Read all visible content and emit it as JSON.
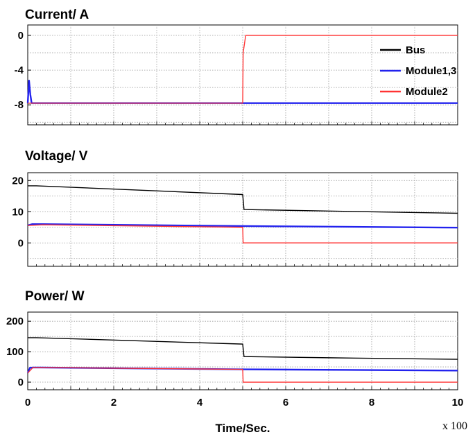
{
  "chart_data": [
    {
      "type": "line",
      "title": "Current/ A",
      "x_range": [
        0,
        10
      ],
      "ylim": [
        -10.3,
        1.2
      ],
      "yticks": [
        0,
        -4,
        -8
      ],
      "grid": true,
      "legend_position": "top-right",
      "series": [
        {
          "name": "Bus",
          "color": "#000000",
          "x": [
            0,
            10
          ],
          "y": [
            -7.8,
            -7.8
          ]
        },
        {
          "name": "Module1,3",
          "color": "#2222ee",
          "x": [
            0,
            0.03,
            0.06,
            0.09,
            10
          ],
          "y": [
            -7.8,
            -5.2,
            -6.8,
            -7.8,
            -7.8
          ]
        },
        {
          "name": "Module2",
          "color": "#ff3333",
          "x": [
            0,
            5.0,
            5.01,
            5.07,
            10
          ],
          "y": [
            -7.8,
            -7.8,
            -2.0,
            0,
            0
          ]
        }
      ]
    },
    {
      "type": "line",
      "title": "Voltage/ V",
      "x_range": [
        0,
        10
      ],
      "ylim": [
        -7.5,
        22.5
      ],
      "yticks": [
        20,
        10,
        0
      ],
      "grid": true,
      "series": [
        {
          "name": "Bus",
          "color": "#000000",
          "x": [
            0,
            0.2,
            5.0,
            5.03,
            7.0,
            10
          ],
          "y": [
            18.3,
            18.3,
            15.5,
            10.7,
            10.2,
            9.5
          ]
        },
        {
          "name": "Module1,3",
          "color": "#2222ee",
          "x": [
            0,
            0.1,
            0.35,
            5.0,
            10
          ],
          "y": [
            5.6,
            6.0,
            6.0,
            5.4,
            4.9
          ]
        },
        {
          "name": "Module2",
          "color": "#ff3333",
          "x": [
            0,
            0.35,
            5.0,
            5.01,
            10
          ],
          "y": [
            5.6,
            5.8,
            5.0,
            0,
            0
          ]
        }
      ]
    },
    {
      "type": "line",
      "title": "Power/ W",
      "x_range": [
        0,
        10
      ],
      "xticks": [
        0,
        2,
        4,
        6,
        8,
        10
      ],
      "xlabel": "Time/Sec.",
      "x_multiplier": "x 100",
      "ylim": [
        -25,
        230
      ],
      "yticks": [
        200,
        100,
        0
      ],
      "grid": true,
      "series": [
        {
          "name": "Bus",
          "color": "#000000",
          "x": [
            0,
            0.2,
            5.0,
            5.03,
            7.0,
            10
          ],
          "y": [
            146,
            146,
            125,
            84,
            80,
            75
          ]
        },
        {
          "name": "Module1,3",
          "color": "#2222ee",
          "x": [
            0,
            0.05,
            0.12,
            0.3,
            5.0,
            10
          ],
          "y": [
            30,
            47,
            48,
            48,
            42,
            38
          ]
        },
        {
          "name": "Module2",
          "color": "#ff3333",
          "x": [
            0,
            0.12,
            0.3,
            5.0,
            5.01,
            10
          ],
          "y": [
            30,
            48,
            48,
            42,
            0,
            0
          ]
        }
      ]
    }
  ]
}
